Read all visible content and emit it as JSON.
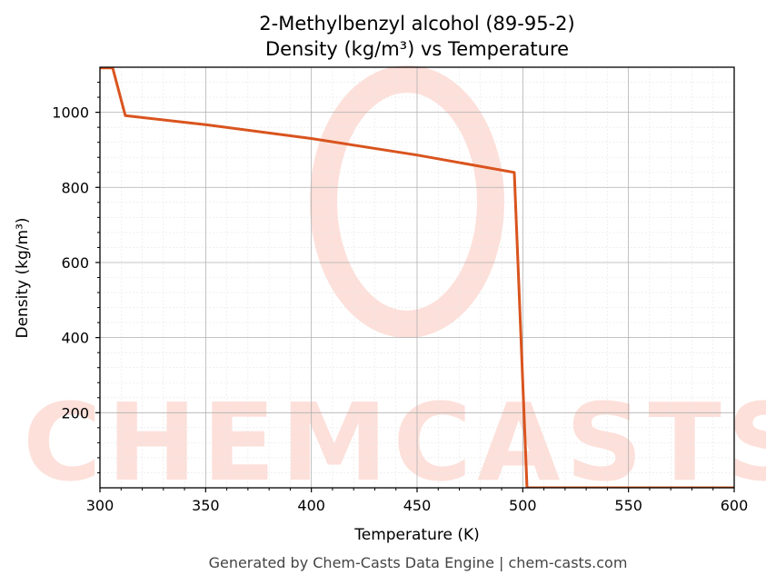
{
  "chart_data": {
    "type": "line",
    "title": "2-Methylbenzyl alcohol (89-95-2)",
    "subtitle": "Density (kg/m³) vs Temperature",
    "xlabel": "Temperature (K)",
    "ylabel": "Density (kg/m³)",
    "xlim": [
      300,
      600
    ],
    "ylim": [
      0,
      1120
    ],
    "xticks": [
      300,
      350,
      400,
      450,
      500,
      550,
      600
    ],
    "yticks": [
      200,
      400,
      600,
      800,
      1000
    ],
    "grid": true,
    "series": [
      {
        "color": "#d9541e",
        "points": [
          [
            300,
            1118
          ],
          [
            306,
            1118
          ],
          [
            312,
            991
          ],
          [
            350,
            967
          ],
          [
            400,
            930
          ],
          [
            450,
            886
          ],
          [
            496,
            840
          ],
          [
            502,
            0
          ],
          [
            600,
            0
          ]
        ]
      }
    ]
  },
  "watermark": {
    "text": "CHEMCASTS",
    "color": "#fde0da"
  },
  "footer": "Generated by Chem-Casts Data Engine | chem-casts.com"
}
